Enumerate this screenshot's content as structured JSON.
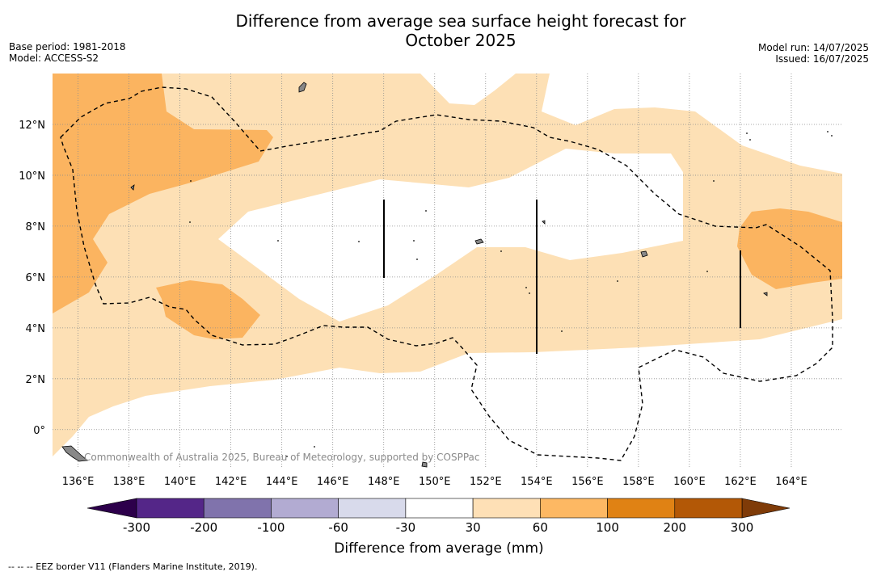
{
  "title_line1": "Difference from average sea surface height forecast for",
  "title_line2": "October 2025",
  "meta": {
    "base_period": "Base period: 1981-2018",
    "model": "Model: ACCESS-S2",
    "model_run": "Model run: 14/07/2025",
    "issued": "Issued: 16/07/2025"
  },
  "map": {
    "lon_range": [
      135,
      166
    ],
    "lat_range": [
      -1.5,
      14
    ],
    "x_ticks": [
      "136°E",
      "138°E",
      "140°E",
      "142°E",
      "144°E",
      "146°E",
      "148°E",
      "150°E",
      "152°E",
      "154°E",
      "156°E",
      "158°E",
      "160°E",
      "162°E",
      "164°E"
    ],
    "x_tick_values": [
      136,
      138,
      140,
      142,
      144,
      146,
      148,
      150,
      152,
      154,
      156,
      158,
      160,
      162,
      164
    ],
    "y_ticks": [
      "12°N",
      "10°N",
      "8°N",
      "6°N",
      "4°N",
      "2°N",
      "0°"
    ],
    "y_tick_values": [
      12,
      10,
      8,
      6,
      4,
      2,
      0
    ],
    "copyright": "Commonwealth of Australia 2025, Bureau of Meteorology, supported by COSPPac",
    "colors": {
      "band_30_60": "#fde0b5",
      "band_60_100": "#fbb460",
      "land": "#888888"
    }
  },
  "colorbar": {
    "title": "Difference from average (mm)",
    "labels": [
      "-300",
      "-200",
      "-100",
      "-60",
      "-30",
      "30",
      "60",
      "100",
      "200",
      "300"
    ],
    "colors": [
      "#542688",
      "#8073ac",
      "#b2abd2",
      "#d8daeb",
      "#ffffff",
      "#fee0b6",
      "#fdb863",
      "#e08214",
      "#b35806"
    ],
    "under_color": "#2d004b",
    "over_color": "#7f3b08"
  },
  "footnote": "--  --  -- EEZ border V11 (Flanders Marine Institute, 2019)."
}
